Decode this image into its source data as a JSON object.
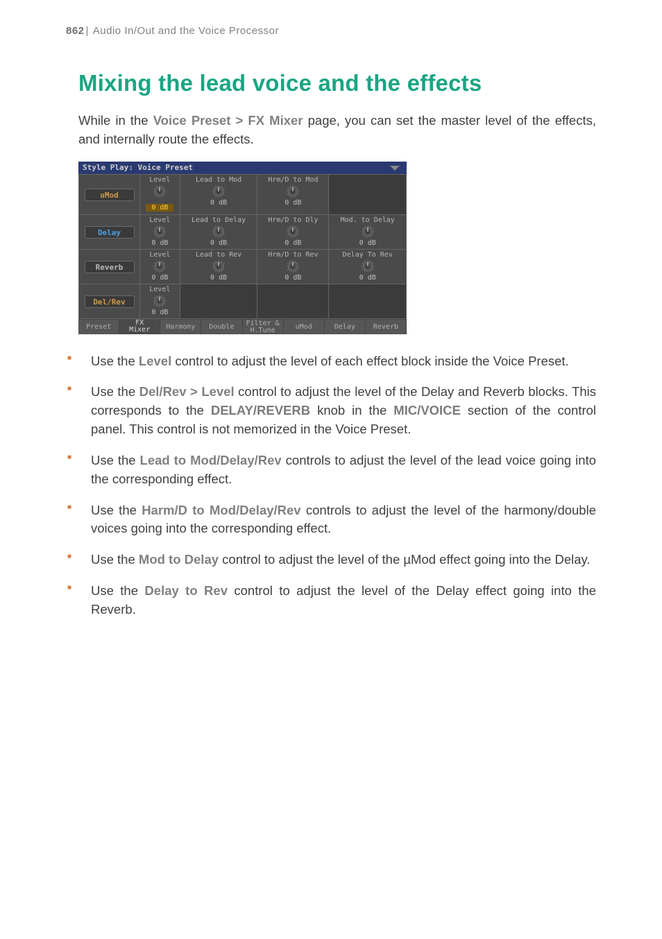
{
  "header": {
    "page_number": "862",
    "separator": "|",
    "section": "Audio In/Out and the Voice Processor"
  },
  "title": "Mixing the lead voice and the effects",
  "intro": {
    "pre": "While in the ",
    "ui": "Voice Preset > FX Mixer",
    "post": " page, you can set the master level of the effects, and internally route the effects."
  },
  "screenshot": {
    "titlebar": "Style Play: Voice Preset",
    "rows": [
      {
        "name": "uMod",
        "name_color": "orange",
        "cells": [
          {
            "label": "Level",
            "value": "0 dB",
            "selected": true
          },
          {
            "label": "Lead to Mod",
            "value": "0 dB"
          },
          {
            "label": "Hrm/D to Mod",
            "value": "0 dB"
          },
          null
        ]
      },
      {
        "name": "Delay",
        "name_color": "blue",
        "cells": [
          {
            "label": "Level",
            "value": "0 dB"
          },
          {
            "label": "Lead to Delay",
            "value": "0 dB"
          },
          {
            "label": "Hrm/D to Dly",
            "value": "0 dB"
          },
          {
            "label": "Mod. to Delay",
            "value": "0 dB"
          }
        ]
      },
      {
        "name": "Reverb",
        "name_color": "gray",
        "cells": [
          {
            "label": "Level",
            "value": "0 dB"
          },
          {
            "label": "Lead to Rev",
            "value": "0 dB"
          },
          {
            "label": "Hrm/D to Rev",
            "value": "0 dB"
          },
          {
            "label": "Delay To Rev",
            "value": "0 dB"
          }
        ]
      },
      {
        "name": "Del/Rev",
        "name_color": "orange",
        "cells": [
          {
            "label": "Level",
            "value": "0 dB"
          },
          null,
          null,
          null
        ]
      }
    ],
    "tabs": [
      "Preset",
      "FX\nMixer",
      "Harmony",
      "Double",
      "Filter &\nH.Tune",
      "uMod",
      "Delay",
      "Reverb"
    ],
    "active_tab_index": 1
  },
  "bullets": [
    {
      "pre": "Use the ",
      "ui": "Level",
      "post": " control to adjust the level of each effect block inside the Voice Preset."
    },
    {
      "pre": "Use the ",
      "ui": "Del/Rev > Level",
      "mid1": " control to adjust the level of the Delay and Reverb blocks. This corresponds to the ",
      "ui2": "DELAY/REVERB",
      "mid2": " knob in the ",
      "ui3": "MIC/VOICE",
      "post": " section of the control panel. This control is not memorized in the Voice Preset."
    },
    {
      "pre": "Use the ",
      "ui": "Lead to Mod/Delay/Rev",
      "post": " controls to adjust the level of the lead voice going into the corresponding effect."
    },
    {
      "pre": "Use the ",
      "ui": "Harm/D to Mod/Delay/Rev",
      "post": " controls to adjust the level of the harmony/double voices going into the corresponding effect."
    },
    {
      "pre": "Use the ",
      "ui": "Mod to Delay",
      "post": " control to adjust the level of the µMod effect going into the Delay."
    },
    {
      "pre": "Use the ",
      "ui": "Delay to Rev",
      "post": " control to adjust the level of the Delay effect going into the Reverb."
    }
  ]
}
